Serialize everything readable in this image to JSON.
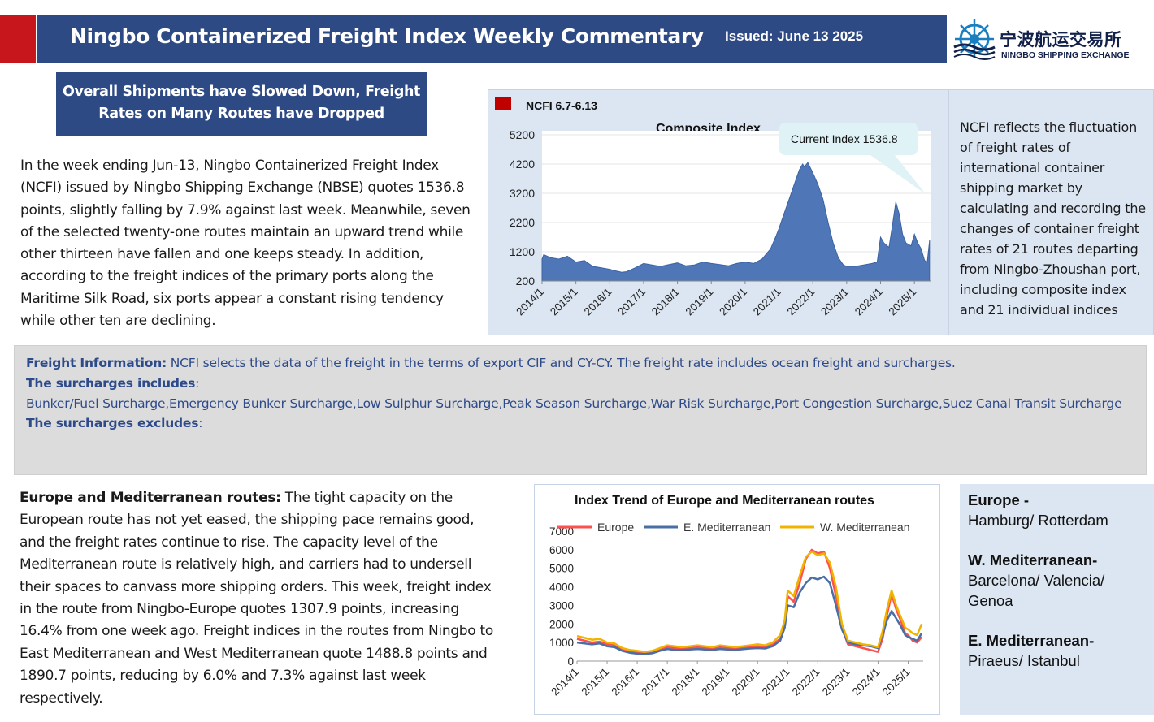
{
  "header": {
    "title": "Ningbo Containerized Freight Index Weekly Commentary",
    "issued": "Issued: June 13 2025",
    "accent_color": "#c8161d",
    "bar_color": "#2e4a85",
    "logo_cn": "宁波航运交易所",
    "logo_en": "NINGBO SHIPPING EXCHANGE",
    "logo_icon": "ship-wheel-logo"
  },
  "subtitle": {
    "line1": "Overall Shipments have Slowed Down, Freight",
    "line2": "Rates on Many Routes have Dropped"
  },
  "intro": {
    "paragraph": "In the week ending Jun-13, Ningbo Containerized Freight Index (NCFI) issued by Ningbo Shipping Exchange (NBSE) quotes 1536.8 points, slightly falling by 7.9% against last week. Meanwhile, seven of the selected twenty-one routes maintain an upward trend while other thirteen have fallen and one keeps steady. In addition, according to the freight indices of the primary ports along the Maritime Silk Road, six ports appear a constant rising tendency while other ten are declining."
  },
  "ncfi_description": "NCFI reflects the fluctuation of freight rates of international container shipping market by calculating and recording the changes of container freight rates of 21 routes departing from Ningbo-Zhoushan port, including composite index and 21 individual indices",
  "freight_info": {
    "label": "Freight Information:",
    "text": " NCFI selects the data of the freight in the terms of export CIF and CY-CY. The freight rate includes ocean freight and surcharges.",
    "includes_label": "The surcharges includes",
    "includes_list": "Bunker/Fuel Surcharge,Emergency Bunker Surcharge,Low Sulphur Surcharge,Peak Season Surcharge,War Risk Surcharge,Port Congestion Surcharge,Suez Canal Transit Surcharge",
    "excludes_label": "The surcharges excludes",
    "colon": ":"
  },
  "europe_section": {
    "label": "Europe and Mediterranean routes:",
    "text": " The tight capacity on the European route has not yet eased, the shipping pace remains good, and the freight rates continue to rise. The capacity level of the Mediterranean route is relatively high, and carriers had to undersell their spaces to canvass more shipping orders. This week, freight index in the route from Ningbo-Europe quotes 1307.9 points, increasing 16.4% from one week ago. Freight indices in the routes from Ningbo to East Mediterranean and West Mediterranean quote 1488.8 points and 1890.7 points, reducing by 6.0% and 7.3% against last week respectively."
  },
  "routes_legend": {
    "europe_title": "Europe -",
    "europe_ports": "Hamburg/ Rotterdam",
    "wmed_title": "W. Mediterranean-",
    "wmed_ports": "Barcelona/ Valencia/ Genoa",
    "emed_title": "E. Mediterranean-",
    "emed_ports": "Piraeus/ Istanbul"
  },
  "chart_data": [
    {
      "type": "area",
      "title": "Composite Index",
      "legend": "NCFI 6.7-6.13",
      "legend_color": "#c00000",
      "callout": "Current Index 1536.8",
      "area_color": "#4f76b6",
      "ylim": [
        200,
        5200
      ],
      "y_ticks": [
        200,
        1200,
        2200,
        3200,
        4200,
        5200
      ],
      "x_ticks": [
        "2014/1",
        "2015/1",
        "2016/1",
        "2017/1",
        "2018/1",
        "2019/1",
        "2020/1",
        "2021/1",
        "2022/1",
        "2023/1",
        "2024/1",
        "2025/1"
      ],
      "x": [
        2014.0,
        2014.05,
        2014.25,
        2014.5,
        2014.75,
        2015.0,
        2015.25,
        2015.5,
        2015.75,
        2016.0,
        2016.15,
        2016.35,
        2016.5,
        2016.75,
        2017.0,
        2017.25,
        2017.5,
        2017.75,
        2018.0,
        2018.25,
        2018.5,
        2018.75,
        2019.0,
        2019.25,
        2019.5,
        2019.75,
        2020.0,
        2020.25,
        2020.5,
        2020.75,
        2020.9,
        2021.0,
        2021.15,
        2021.3,
        2021.45,
        2021.6,
        2021.7,
        2021.75,
        2021.85,
        2022.0,
        2022.15,
        2022.3,
        2022.45,
        2022.6,
        2022.75,
        2022.9,
        2023.0,
        2023.25,
        2023.5,
        2023.75,
        2023.9,
        2024.0,
        2024.1,
        2024.25,
        2024.35,
        2024.45,
        2024.55,
        2024.65,
        2024.75,
        2024.9,
        2025.0,
        2025.1,
        2025.2,
        2025.3,
        2025.38,
        2025.45
      ],
      "values": [
        950,
        1100,
        1000,
        950,
        1050,
        850,
        900,
        700,
        650,
        600,
        550,
        500,
        520,
        650,
        800,
        750,
        700,
        760,
        820,
        720,
        750,
        850,
        800,
        760,
        720,
        800,
        850,
        800,
        950,
        1300,
        1700,
        2000,
        2500,
        3000,
        3500,
        4000,
        4200,
        4100,
        4250,
        3900,
        3500,
        3000,
        2200,
        1500,
        1000,
        750,
        700,
        700,
        750,
        800,
        850,
        1700,
        1500,
        1350,
        2100,
        2900,
        2500,
        1800,
        1500,
        1400,
        1800,
        1500,
        1300,
        900,
        850,
        1600
      ]
    },
    {
      "type": "line",
      "title": "Index Trend of Europe and Mediterranean routes",
      "ylim": [
        0,
        7000
      ],
      "y_ticks": [
        0,
        1000,
        2000,
        3000,
        4000,
        5000,
        6000,
        7000
      ],
      "x_ticks": [
        "2014/1",
        "2015/1",
        "2016/1",
        "2017/1",
        "2018/1",
        "2019/1",
        "2020/1",
        "2021/1",
        "2022/1",
        "2023/1",
        "2024/1",
        "2025/1"
      ],
      "x": [
        2014.0,
        2014.25,
        2014.5,
        2014.75,
        2015.0,
        2015.25,
        2015.5,
        2015.75,
        2016.0,
        2016.25,
        2016.5,
        2016.75,
        2017.0,
        2017.25,
        2017.5,
        2017.75,
        2018.0,
        2018.25,
        2018.5,
        2018.75,
        2019.0,
        2019.25,
        2019.5,
        2019.75,
        2020.0,
        2020.25,
        2020.5,
        2020.75,
        2020.9,
        2021.0,
        2021.2,
        2021.4,
        2021.6,
        2021.8,
        2022.0,
        2022.2,
        2022.4,
        2022.6,
        2022.8,
        2023.0,
        2023.25,
        2023.5,
        2023.75,
        2024.0,
        2024.15,
        2024.3,
        2024.45,
        2024.6,
        2024.75,
        2024.9,
        2025.0,
        2025.15,
        2025.3,
        2025.45
      ],
      "series": [
        {
          "name": "Europe",
          "color": "#ff5050",
          "values": [
            1200,
            1100,
            1000,
            1050,
            900,
            850,
            600,
            500,
            450,
            400,
            450,
            600,
            750,
            700,
            650,
            700,
            750,
            700,
            650,
            750,
            700,
            650,
            700,
            750,
            800,
            750,
            900,
            1200,
            2000,
            3500,
            3200,
            4200,
            5500,
            6000,
            5800,
            5900,
            5000,
            3500,
            1800,
            900,
            800,
            700,
            600,
            500,
            1200,
            2500,
            3600,
            2800,
            2200,
            1500,
            1400,
            1100,
            1000,
            1300
          ]
        },
        {
          "name": "E. Mediterranean",
          "color": "#4a6fa5",
          "values": [
            1000,
            950,
            900,
            950,
            800,
            750,
            550,
            450,
            400,
            380,
            420,
            550,
            650,
            600,
            600,
            620,
            650,
            620,
            600,
            650,
            620,
            600,
            640,
            680,
            700,
            680,
            800,
            1100,
            1800,
            3000,
            2900,
            3700,
            4200,
            4500,
            4400,
            4550,
            4200,
            3000,
            1700,
            1000,
            900,
            850,
            800,
            700,
            1400,
            2200,
            2700,
            2300,
            1900,
            1400,
            1300,
            1200,
            1100,
            1500
          ]
        },
        {
          "name": "W. Mediterranean",
          "color": "#f0b400",
          "values": [
            1350,
            1250,
            1150,
            1200,
            1000,
            950,
            700,
            600,
            550,
            500,
            550,
            700,
            850,
            800,
            750,
            800,
            850,
            800,
            750,
            850,
            800,
            750,
            800,
            850,
            900,
            850,
            1000,
            1400,
            2200,
            3800,
            3500,
            4600,
            5600,
            5900,
            5700,
            5800,
            5300,
            4000,
            2000,
            1100,
            1000,
            900,
            850,
            750,
            1600,
            2800,
            3800,
            3000,
            2400,
            1800,
            1700,
            1500,
            1400,
            2000
          ]
        }
      ]
    }
  ]
}
